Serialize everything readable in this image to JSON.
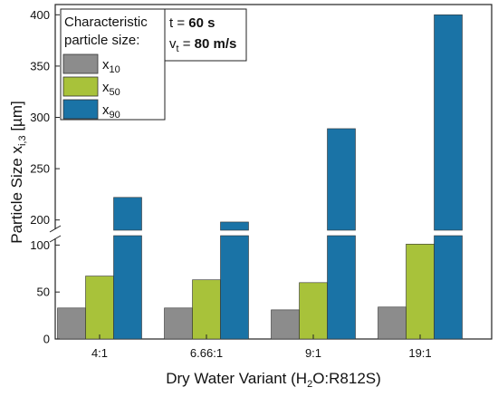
{
  "chart_data": {
    "type": "bar",
    "xlabel": "Dry Water Variant (H",
    "xlabel_sub": "2",
    "xlabel_tail": "O:R812S)",
    "ylabel": "Particle Size x",
    "ylabel_sub": "i,3",
    "ylabel_tail": " [µm]",
    "categories": [
      "4:1",
      "6.66:1",
      "9:1",
      "19:1"
    ],
    "series": [
      {
        "name": "x",
        "sub": "10",
        "color": "#8c8c8c",
        "values": [
          33,
          33,
          31,
          34
        ]
      },
      {
        "name": "x",
        "sub": "50",
        "color": "#a8c23a",
        "values": [
          67,
          63,
          60,
          101
        ]
      },
      {
        "name": "x",
        "sub": "90",
        "color": "#1a73a6",
        "values": [
          222,
          198,
          289,
          400
        ]
      }
    ],
    "y_axis": {
      "break": true,
      "lower": {
        "range": [
          0,
          110
        ],
        "ticks": [
          "0",
          "50",
          "100"
        ],
        "tick_values": [
          0,
          50,
          100
        ]
      },
      "upper": {
        "range": [
          190,
          410
        ],
        "ticks": [
          "200",
          "250",
          "300",
          "350",
          "400"
        ],
        "tick_values": [
          200,
          250,
          300,
          350,
          400
        ]
      }
    },
    "legend": {
      "position": "top-left",
      "title_line1": "Characteristic",
      "title_line2": "particle size:"
    },
    "conditions": {
      "t_label": "t = ",
      "t_value": "60 s",
      "v_label": "v",
      "v_sub": "t",
      "v_eq": " = ",
      "v_value": "80 m/s"
    },
    "grid": false
  }
}
